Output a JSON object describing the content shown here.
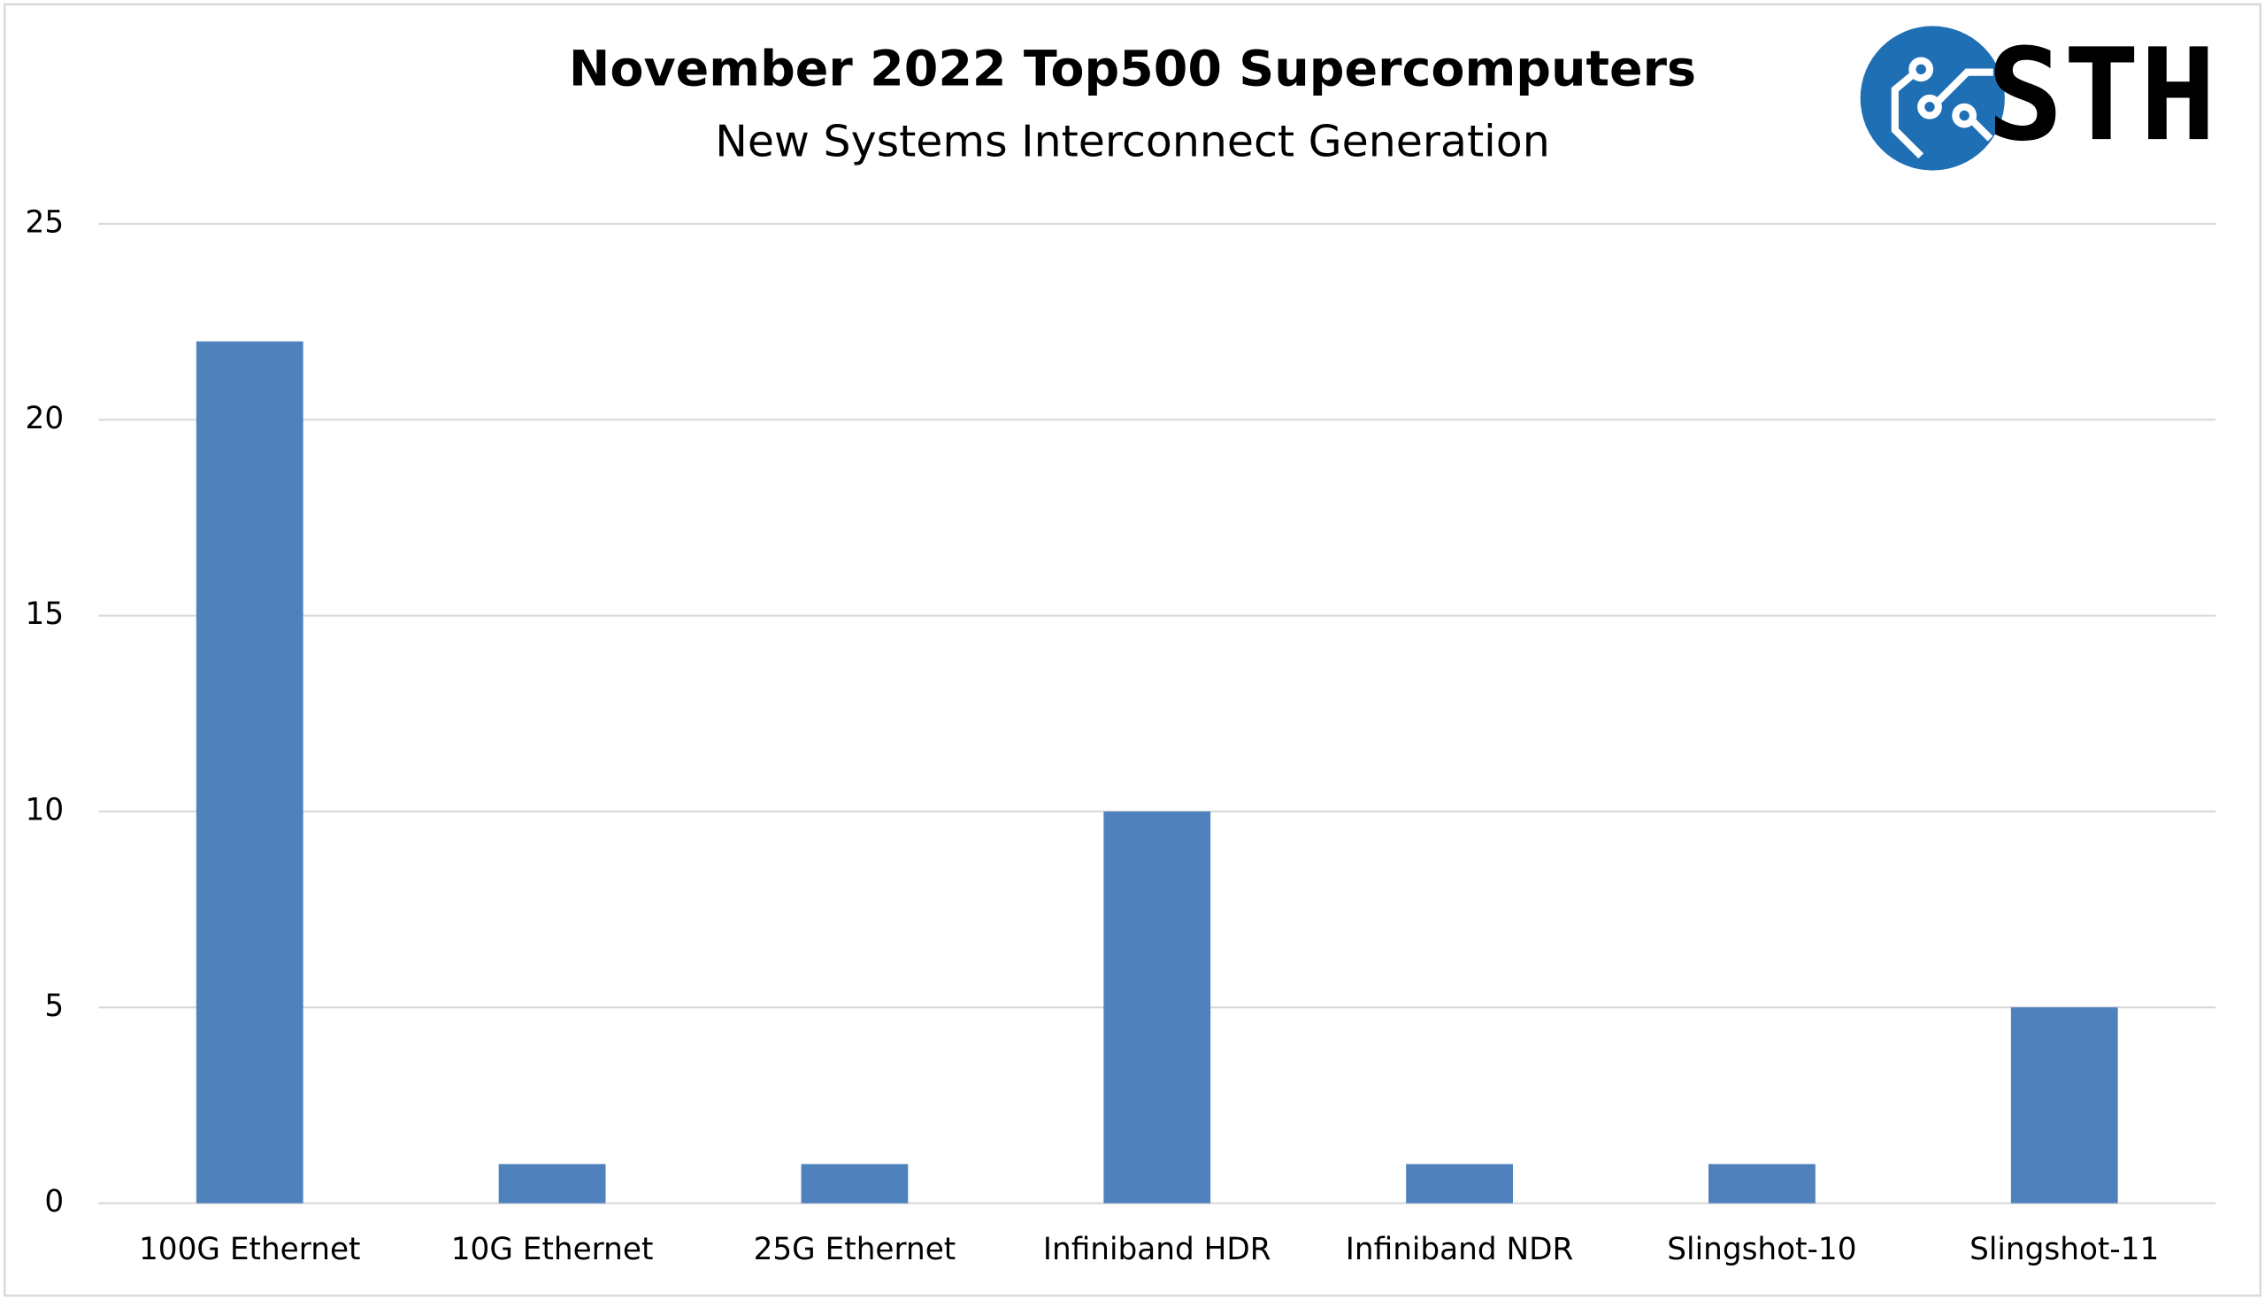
{
  "chart_data": {
    "type": "bar",
    "title": "November 2022 Top500 Supercomputers",
    "subtitle": "New Systems Interconnect Generation",
    "categories": [
      "100G Ethernet",
      "10G Ethernet",
      "25G Ethernet",
      "Infiniband HDR",
      "Infiniband NDR",
      "Slingshot-10",
      "Slingshot-11"
    ],
    "values": [
      22,
      1,
      1,
      10,
      1,
      1,
      5
    ],
    "color": "#4f81bd",
    "ylim": [
      0,
      25
    ],
    "yticks": [
      0,
      5,
      10,
      15,
      20,
      25
    ],
    "grid": true
  },
  "logo": {
    "text": "STH"
  }
}
